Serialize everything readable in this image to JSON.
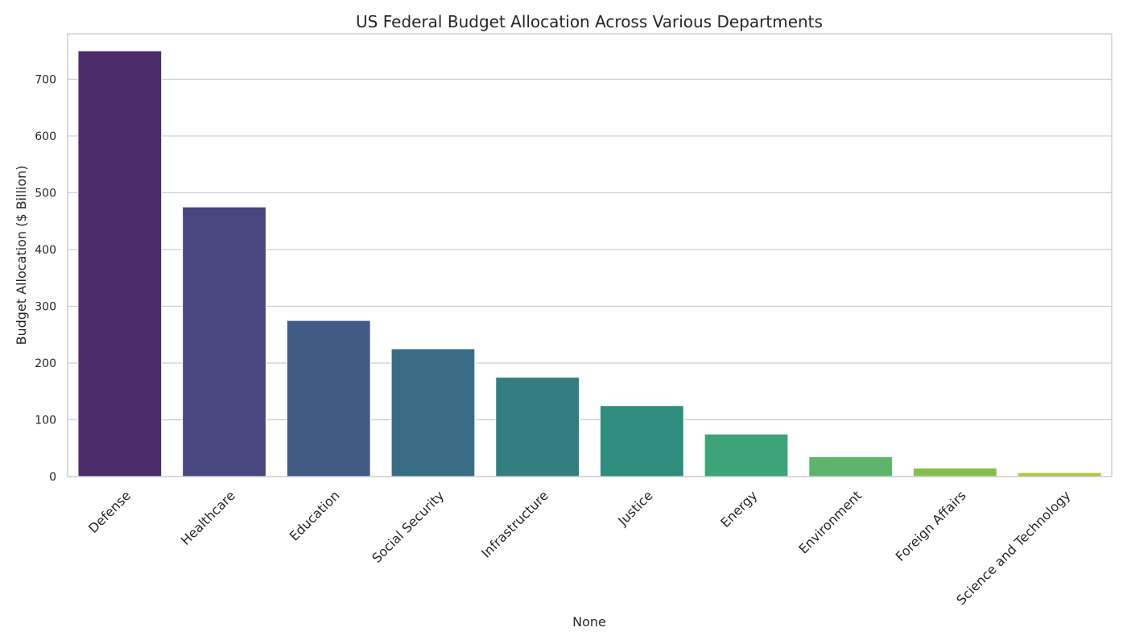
{
  "chart_data": {
    "type": "bar",
    "title": "US Federal Budget Allocation Across Various Departments",
    "xlabel": "None",
    "ylabel": "Budget Allocation ($ Billion)",
    "ylim": [
      0,
      780
    ],
    "yticks": [
      0,
      100,
      200,
      300,
      400,
      500,
      600,
      700
    ],
    "grid": "horizontal",
    "categories": [
      "Defense",
      "Healthcare",
      "Education",
      "Social Security",
      "Infrastructure",
      "Justice",
      "Energy",
      "Environment",
      "Foreign Affairs",
      "Science and Technology"
    ],
    "values": [
      750,
      475,
      275,
      225,
      175,
      125,
      75,
      35,
      15,
      7
    ],
    "colors": [
      "#4a2c6a",
      "#47467e",
      "#425b85",
      "#3a6d85",
      "#337d81",
      "#2e8d7c",
      "#3da47a",
      "#5cb56a",
      "#86bf4d",
      "#b3c63e"
    ]
  }
}
